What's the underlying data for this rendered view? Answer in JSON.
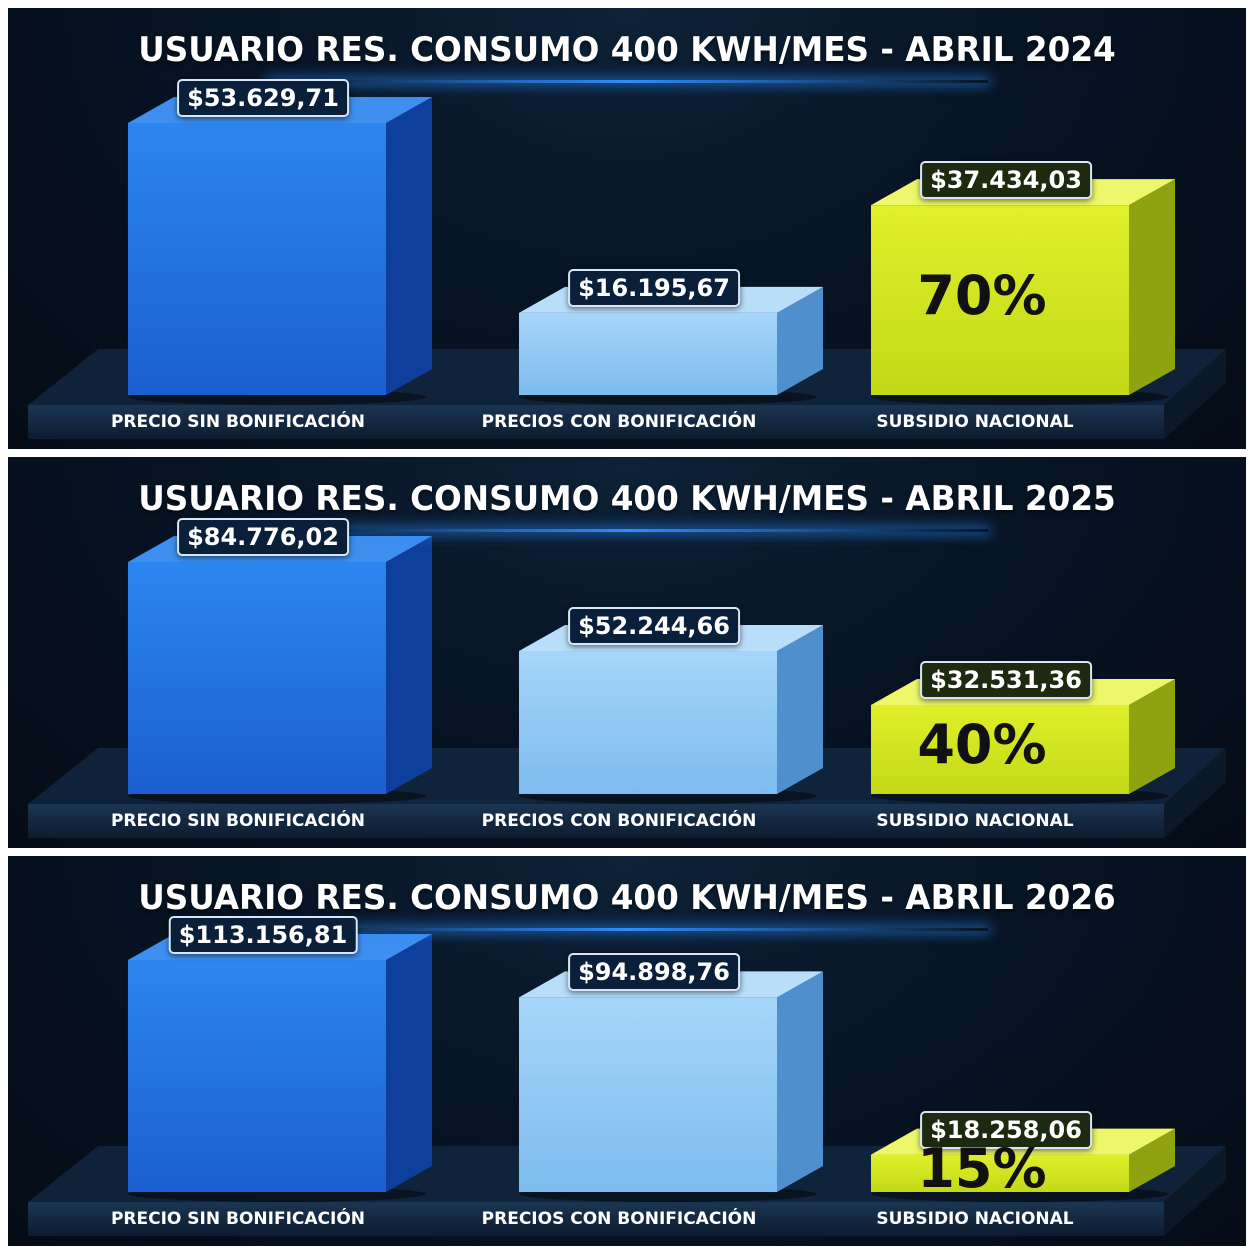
{
  "chart_data": [
    {
      "type": "bar",
      "title": "USUARIO RES. CONSUMO 400 KWH/MES - ABRIL 2024",
      "categories": [
        "PRECIO SIN BONIFICACIÓN",
        "PRECIOS CON BONIFICACIÓN",
        "SUBSIDIO NACIONAL"
      ],
      "values": [
        53629.71,
        16195.67,
        37434.03
      ],
      "value_labels": [
        "$53.629,71",
        "$16.195,67",
        "$37.434,03"
      ],
      "subsidy_percent_label": "70%",
      "subsidy_percent": 70,
      "colors": [
        "#1f6fe0",
        "#8cc6f5",
        "#d4ea1e"
      ]
    },
    {
      "type": "bar",
      "title": "USUARIO RES. CONSUMO 400 KWH/MES - ABRIL 2025",
      "categories": [
        "PRECIO SIN BONIFICACIÓN",
        "PRECIOS CON BONIFICACIÓN",
        "SUBSIDIO NACIONAL"
      ],
      "values": [
        84776.02,
        52244.66,
        32531.36
      ],
      "value_labels": [
        "$84.776,02",
        "$52.244,66",
        "$32.531,36"
      ],
      "subsidy_percent_label": "40%",
      "subsidy_percent": 40,
      "colors": [
        "#1f6fe0",
        "#8cc6f5",
        "#d4ea1e"
      ]
    },
    {
      "type": "bar",
      "title": "USUARIO RES. CONSUMO 400 KWH/MES - ABRIL 2026",
      "categories": [
        "PRECIO SIN BONIFICACIÓN",
        "PRECIOS CON BONIFICACIÓN",
        "SUBSIDIO NACIONAL"
      ],
      "values": [
        113156.81,
        94898.76,
        18258.06
      ],
      "value_labels": [
        "$113.156,81",
        "$94.898,76",
        "$18.258,06"
      ],
      "subsidy_percent_label": "15%",
      "subsidy_percent": 15,
      "colors": [
        "#1f6fe0",
        "#8cc6f5",
        "#d4ea1e"
      ]
    }
  ]
}
